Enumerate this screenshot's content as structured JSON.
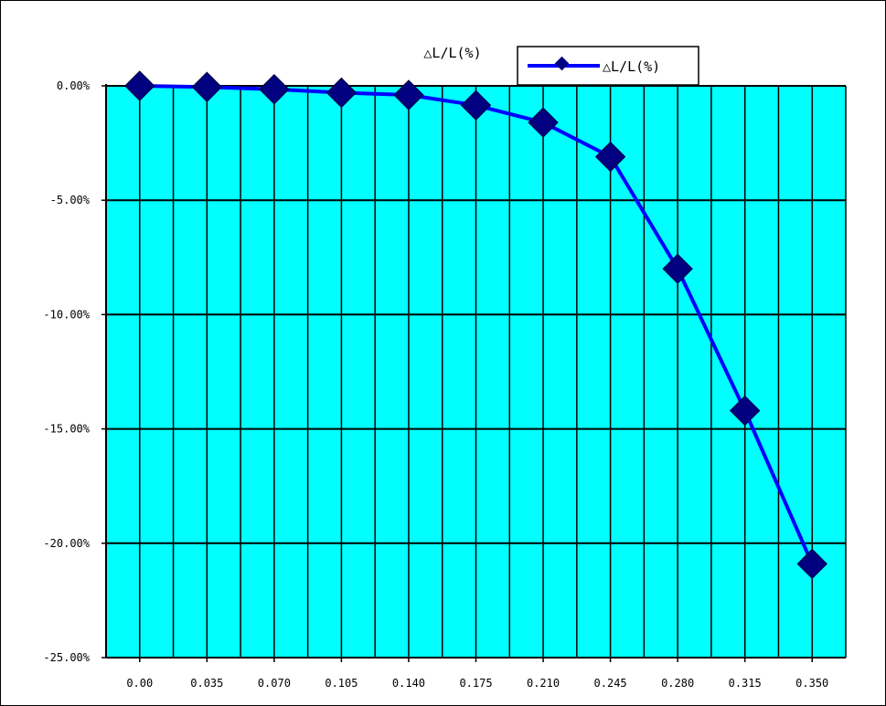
{
  "chart_data": {
    "type": "line",
    "title": "△L/L(%)",
    "xlabel": "",
    "ylabel": "",
    "categories": [
      "0.00",
      "0.035",
      "0.070",
      "0.105",
      "0.140",
      "0.175",
      "0.210",
      "0.245",
      "0.280",
      "0.315",
      "0.350"
    ],
    "y_ticks": [
      "0.00%",
      "-5.00%",
      "-10.00%",
      "-15.00%",
      "-20.00%",
      "-25.00%"
    ],
    "y_tick_values": [
      0,
      -5,
      -10,
      -15,
      -20,
      -25
    ],
    "ylim": [
      -25,
      0
    ],
    "series": [
      {
        "name": "△L/L(%)",
        "values": [
          0.0,
          -0.05,
          -0.15,
          -0.3,
          -0.4,
          -0.85,
          -1.6,
          -3.1,
          -8.0,
          -14.2,
          -20.9
        ]
      }
    ],
    "grid": true,
    "legend_position": "top-right",
    "colors": {
      "plot_background": "#00FFFF",
      "line": "#0000FF",
      "marker": "#000080",
      "grid": "#000000"
    }
  }
}
